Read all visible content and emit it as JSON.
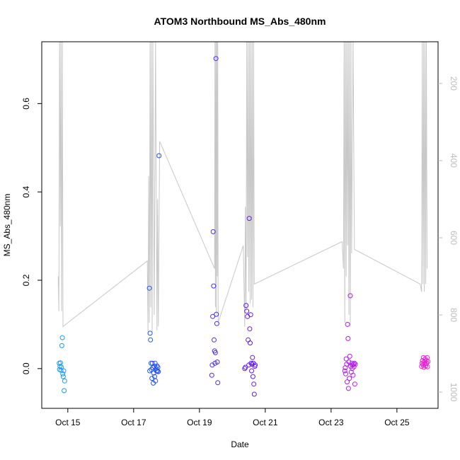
{
  "chart_data": {
    "type": "scatter",
    "title": "ATOM3 Northbound MS_Abs_480nm",
    "xlabel": "Date",
    "ylabel": "MS_Abs_480nm",
    "x_axis": {
      "type": "date",
      "range": [
        "2016-10-14T05:00",
        "2016-10-26T06:00"
      ],
      "ticks": [
        {
          "value": "2016-10-15",
          "label": "Oct 15"
        },
        {
          "value": "2016-10-17",
          "label": "Oct 17"
        },
        {
          "value": "2016-10-19",
          "label": "Oct 19"
        },
        {
          "value": "2016-10-21",
          "label": "Oct 21"
        },
        {
          "value": "2016-10-23",
          "label": "Oct 23"
        },
        {
          "value": "2016-10-25",
          "label": "Oct 25"
        }
      ]
    },
    "y_axis": {
      "range": [
        -0.09,
        0.74
      ],
      "ticks": [
        0.0,
        0.2,
        0.4,
        0.6
      ],
      "tick_labels": [
        "0.0",
        "0.2",
        "0.4",
        "0.6"
      ]
    },
    "secondary_y_axis": {
      "reversed": true,
      "range": [
        1042,
        92
      ],
      "ticks": [
        200,
        400,
        600,
        800,
        1000
      ],
      "tick_labels": [
        "200",
        "400",
        "600",
        "800",
        "1000"
      ],
      "color": "#bdbdbd"
    },
    "grid": false,
    "legend": "none",
    "series": [
      {
        "type": "scatter",
        "marker": "open-circle",
        "color_gradient": [
          "#1fa8f0",
          "#1a5cf5",
          "#5a1bf0",
          "#a81ff0",
          "#f01fd0"
        ],
        "points": [
          {
            "x": "2016-10-14T17:45",
            "y": 0.012
          },
          {
            "x": "2016-10-14T18:00",
            "y": -0.002
          },
          {
            "x": "2016-10-14T18:20",
            "y": 0.005
          },
          {
            "x": "2016-10-14T18:40",
            "y": 0.013
          },
          {
            "x": "2016-10-14T19:00",
            "y": -0.004
          },
          {
            "x": "2016-10-14T19:20",
            "y": 0.003
          },
          {
            "x": "2016-10-14T19:40",
            "y": 0.052
          },
          {
            "x": "2016-10-14T20:00",
            "y": 0.07
          },
          {
            "x": "2016-10-14T20:20",
            "y": -0.012
          },
          {
            "x": "2016-10-14T20:40",
            "y": -0.018
          },
          {
            "x": "2016-10-14T21:00",
            "y": -0.005
          },
          {
            "x": "2016-10-14T21:20",
            "y": -0.05
          },
          {
            "x": "2016-10-14T21:40",
            "y": -0.028
          },
          {
            "x": "2016-10-17T11:30",
            "y": 0.182
          },
          {
            "x": "2016-10-17T11:45",
            "y": -0.005
          },
          {
            "x": "2016-10-17T12:00",
            "y": 0.08
          },
          {
            "x": "2016-10-17T12:20",
            "y": 0.065
          },
          {
            "x": "2016-10-17T12:40",
            "y": 0.012
          },
          {
            "x": "2016-10-17T13:00",
            "y": -0.002
          },
          {
            "x": "2016-10-17T13:20",
            "y": -0.022
          },
          {
            "x": "2016-10-17T13:40",
            "y": 0.012
          },
          {
            "x": "2016-10-17T14:00",
            "y": 0.002
          },
          {
            "x": "2016-10-17T14:20",
            "y": -0.033
          },
          {
            "x": "2016-10-17T14:40",
            "y": -0.01
          },
          {
            "x": "2016-10-17T15:00",
            "y": 0.005
          },
          {
            "x": "2016-10-17T15:20",
            "y": -0.018
          },
          {
            "x": "2016-10-17T15:40",
            "y": 0.012
          },
          {
            "x": "2016-10-17T16:00",
            "y": -0.028
          },
          {
            "x": "2016-10-17T16:20",
            "y": 0.0
          },
          {
            "x": "2016-10-17T16:40",
            "y": -0.005
          },
          {
            "x": "2016-10-17T17:00",
            "y": 0.006
          },
          {
            "x": "2016-10-17T17:20",
            "y": -0.006
          },
          {
            "x": "2016-10-17T17:40",
            "y": 0.003
          },
          {
            "x": "2016-10-17T18:00",
            "y": -0.007
          },
          {
            "x": "2016-10-17T18:30",
            "y": 0.482
          },
          {
            "x": "2016-10-19T09:00",
            "y": -0.015
          },
          {
            "x": "2016-10-19T09:20",
            "y": 0.008
          },
          {
            "x": "2016-10-19T09:40",
            "y": 0.118
          },
          {
            "x": "2016-10-19T10:00",
            "y": 0.31
          },
          {
            "x": "2016-10-19T10:20",
            "y": 0.187
          },
          {
            "x": "2016-10-19T10:40",
            "y": 0.065
          },
          {
            "x": "2016-10-19T11:00",
            "y": 0.04
          },
          {
            "x": "2016-10-19T11:20",
            "y": 0.012
          },
          {
            "x": "2016-10-19T11:40",
            "y": 0.036
          },
          {
            "x": "2016-10-19T12:00",
            "y": 0.702
          },
          {
            "x": "2016-10-19T12:20",
            "y": 0.123
          },
          {
            "x": "2016-10-19T12:40",
            "y": 0.102
          },
          {
            "x": "2016-10-19T13:00",
            "y": 0.015
          },
          {
            "x": "2016-10-19T13:20",
            "y": -0.032
          },
          {
            "x": "2016-10-20T09:00",
            "y": 0.0
          },
          {
            "x": "2016-10-20T09:30",
            "y": 0.003
          },
          {
            "x": "2016-10-20T10:00",
            "y": 0.143
          },
          {
            "x": "2016-10-20T10:30",
            "y": 0.13
          },
          {
            "x": "2016-10-20T11:00",
            "y": 0.118
          },
          {
            "x": "2016-10-20T11:30",
            "y": 0.065
          },
          {
            "x": "2016-10-20T12:00",
            "y": 0.008
          },
          {
            "x": "2016-10-20T12:20",
            "y": 0.34
          },
          {
            "x": "2016-10-20T12:40",
            "y": 0.09
          },
          {
            "x": "2016-10-20T13:00",
            "y": 0.058
          },
          {
            "x": "2016-10-20T13:20",
            "y": 0.122
          },
          {
            "x": "2016-10-20T13:40",
            "y": 0.012
          },
          {
            "x": "2016-10-20T14:00",
            "y": -0.005
          },
          {
            "x": "2016-10-20T14:20",
            "y": 0.01
          },
          {
            "x": "2016-10-20T14:40",
            "y": 0.025
          },
          {
            "x": "2016-10-20T15:00",
            "y": -0.018
          },
          {
            "x": "2016-10-20T15:20",
            "y": 0.012
          },
          {
            "x": "2016-10-20T15:40",
            "y": -0.035
          },
          {
            "x": "2016-10-20T16:00",
            "y": -0.058
          },
          {
            "x": "2016-10-20T16:20",
            "y": 0.005
          },
          {
            "x": "2016-10-20T16:40",
            "y": 0.008
          },
          {
            "x": "2016-10-23T10:00",
            "y": -0.005
          },
          {
            "x": "2016-10-23T10:20",
            "y": 0.002
          },
          {
            "x": "2016-10-23T10:40",
            "y": -0.012
          },
          {
            "x": "2016-10-23T11:00",
            "y": 0.022
          },
          {
            "x": "2016-10-23T11:20",
            "y": 0.01
          },
          {
            "x": "2016-10-23T11:40",
            "y": -0.03
          },
          {
            "x": "2016-10-23T12:00",
            "y": 0.1
          },
          {
            "x": "2016-10-23T12:20",
            "y": 0.068
          },
          {
            "x": "2016-10-23T12:40",
            "y": -0.045
          },
          {
            "x": "2016-10-23T13:00",
            "y": 0.015
          },
          {
            "x": "2016-10-23T13:20",
            "y": -0.022
          },
          {
            "x": "2016-10-23T13:40",
            "y": 0.028
          },
          {
            "x": "2016-10-23T14:00",
            "y": 0.165
          },
          {
            "x": "2016-10-23T14:20",
            "y": 0.005
          },
          {
            "x": "2016-10-23T14:40",
            "y": -0.008
          },
          {
            "x": "2016-10-23T15:00",
            "y": 0.012
          },
          {
            "x": "2016-10-23T15:20",
            "y": 0.0
          },
          {
            "x": "2016-10-23T15:40",
            "y": 0.008
          },
          {
            "x": "2016-10-23T16:00",
            "y": -0.015
          },
          {
            "x": "2016-10-23T16:20",
            "y": 0.01
          },
          {
            "x": "2016-10-23T16:40",
            "y": 0.004
          },
          {
            "x": "2016-10-23T17:00",
            "y": 0.012
          },
          {
            "x": "2016-10-23T17:20",
            "y": -0.035
          },
          {
            "x": "2016-10-23T17:40",
            "y": 0.01
          },
          {
            "x": "2016-10-25T18:00",
            "y": 0.005
          },
          {
            "x": "2016-10-25T18:20",
            "y": 0.012
          },
          {
            "x": "2016-10-25T18:40",
            "y": 0.018
          },
          {
            "x": "2016-10-25T19:00",
            "y": 0.008
          },
          {
            "x": "2016-10-25T19:20",
            "y": 0.025
          },
          {
            "x": "2016-10-25T19:40",
            "y": 0.003
          },
          {
            "x": "2016-10-25T20:00",
            "y": 0.015
          },
          {
            "x": "2016-10-25T20:20",
            "y": 0.01
          },
          {
            "x": "2016-10-25T20:40",
            "y": 0.022
          },
          {
            "x": "2016-10-25T21:00",
            "y": 0.006
          },
          {
            "x": "2016-10-25T21:20",
            "y": 0.018
          },
          {
            "x": "2016-10-25T21:40",
            "y": 0.012
          },
          {
            "x": "2016-10-25T22:00",
            "y": 0.025
          },
          {
            "x": "2016-10-25T22:20",
            "y": 0.004
          },
          {
            "x": "2016-10-25T22:40",
            "y": 0.016
          }
        ]
      },
      {
        "type": "line",
        "axis": "secondary",
        "color": "#c8c8c8",
        "points": [
          {
            "x": "2016-10-14T17:00",
            "y": 700
          },
          {
            "x": "2016-10-14T17:30",
            "y": 790
          },
          {
            "x": "2016-10-14T18:00",
            "y": 90
          },
          {
            "x": "2016-10-14T18:30",
            "y": 570
          },
          {
            "x": "2016-10-14T19:00",
            "y": 90
          },
          {
            "x": "2016-10-14T19:30",
            "y": 790
          },
          {
            "x": "2016-10-14T20:00",
            "y": 90
          },
          {
            "x": "2016-10-14T20:30",
            "y": 830
          },
          {
            "x": "2016-10-17T10:00",
            "y": 660
          },
          {
            "x": "2016-10-17T10:30",
            "y": 850
          },
          {
            "x": "2016-10-17T11:00",
            "y": 440
          },
          {
            "x": "2016-10-17T11:30",
            "y": 820
          },
          {
            "x": "2016-10-17T12:00",
            "y": 90
          },
          {
            "x": "2016-10-17T12:30",
            "y": 780
          },
          {
            "x": "2016-10-17T13:00",
            "y": 90
          },
          {
            "x": "2016-10-17T13:30",
            "y": 850
          },
          {
            "x": "2016-10-17T14:00",
            "y": 90
          },
          {
            "x": "2016-10-17T15:00",
            "y": 800
          },
          {
            "x": "2016-10-17T16:00",
            "y": 90
          },
          {
            "x": "2016-10-17T17:00",
            "y": 840
          },
          {
            "x": "2016-10-17T17:30",
            "y": 500
          },
          {
            "x": "2016-10-17T18:00",
            "y": 830
          },
          {
            "x": "2016-10-17T19:00",
            "y": 350
          },
          {
            "x": "2016-10-19T11:00",
            "y": 680
          },
          {
            "x": "2016-10-19T11:20",
            "y": 90
          },
          {
            "x": "2016-10-19T11:40",
            "y": 780
          },
          {
            "x": "2016-10-19T12:00",
            "y": 90
          },
          {
            "x": "2016-10-19T12:20",
            "y": 800
          },
          {
            "x": "2016-10-19T12:40",
            "y": 90
          },
          {
            "x": "2016-10-19T13:00",
            "y": 700
          },
          {
            "x": "2016-10-19T13:20",
            "y": 90
          },
          {
            "x": "2016-10-19T13:40",
            "y": 820
          },
          {
            "x": "2016-10-20T08:00",
            "y": 620
          },
          {
            "x": "2016-10-20T09:00",
            "y": 830
          },
          {
            "x": "2016-10-20T09:30",
            "y": 520
          },
          {
            "x": "2016-10-20T10:00",
            "y": 790
          },
          {
            "x": "2016-10-20T10:30",
            "y": 90
          },
          {
            "x": "2016-10-20T11:00",
            "y": 650
          },
          {
            "x": "2016-10-20T11:30",
            "y": 90
          },
          {
            "x": "2016-10-20T12:00",
            "y": 740
          },
          {
            "x": "2016-10-20T12:30",
            "y": 90
          },
          {
            "x": "2016-10-20T13:00",
            "y": 770
          },
          {
            "x": "2016-10-20T13:30",
            "y": 90
          },
          {
            "x": "2016-10-20T14:00",
            "y": 760
          },
          {
            "x": "2016-10-20T14:30",
            "y": 90
          },
          {
            "x": "2016-10-20T15:00",
            "y": 780
          },
          {
            "x": "2016-10-20T15:30",
            "y": 90
          },
          {
            "x": "2016-10-20T16:00",
            "y": 720
          },
          {
            "x": "2016-10-23T08:00",
            "y": 610
          },
          {
            "x": "2016-10-23T09:00",
            "y": 680
          },
          {
            "x": "2016-10-23T09:30",
            "y": 90
          },
          {
            "x": "2016-10-23T10:00",
            "y": 820
          },
          {
            "x": "2016-10-23T10:30",
            "y": 90
          },
          {
            "x": "2016-10-23T11:00",
            "y": 700
          },
          {
            "x": "2016-10-23T11:30",
            "y": 90
          },
          {
            "x": "2016-10-23T12:00",
            "y": 620
          },
          {
            "x": "2016-10-23T12:30",
            "y": 90
          },
          {
            "x": "2016-10-23T13:00",
            "y": 800
          },
          {
            "x": "2016-10-23T13:30",
            "y": 90
          },
          {
            "x": "2016-10-23T14:00",
            "y": 830
          },
          {
            "x": "2016-10-23T14:30",
            "y": 90
          },
          {
            "x": "2016-10-23T15:00",
            "y": 640
          },
          {
            "x": "2016-10-23T16:00",
            "y": 90
          },
          {
            "x": "2016-10-23T17:00",
            "y": 630
          },
          {
            "x": "2016-10-25T17:00",
            "y": 720
          },
          {
            "x": "2016-10-25T18:00",
            "y": 740
          },
          {
            "x": "2016-10-25T18:30",
            "y": 90
          },
          {
            "x": "2016-10-25T19:00",
            "y": 720
          },
          {
            "x": "2016-10-25T19:30",
            "y": 90
          },
          {
            "x": "2016-10-25T20:00",
            "y": 740
          },
          {
            "x": "2016-10-25T20:30",
            "y": 90
          },
          {
            "x": "2016-10-25T21:00",
            "y": 720
          },
          {
            "x": "2016-10-25T21:30",
            "y": 90
          },
          {
            "x": "2016-10-25T22:00",
            "y": 680
          }
        ]
      }
    ]
  }
}
